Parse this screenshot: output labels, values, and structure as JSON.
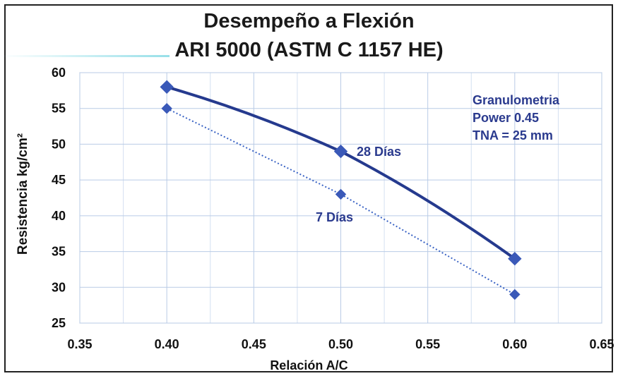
{
  "chart_data": {
    "type": "line",
    "title": "Desempeño a Flexión",
    "subtitle": "ARI 5000  (ASTM C 1157 HE)",
    "xlabel": "Relación A/C",
    "ylabel": "Resistencia  kg/cm²",
    "xlim": [
      0.35,
      0.65
    ],
    "ylim": [
      25,
      60
    ],
    "x_ticks": [
      "0.35",
      "0.40",
      "0.45",
      "0.50",
      "0.55",
      "0.60",
      "0.65"
    ],
    "y_ticks": [
      "60",
      "55",
      "50",
      "45",
      "40",
      "35",
      "30",
      "25"
    ],
    "grid": true,
    "x": [
      0.4,
      0.5,
      0.6
    ],
    "series": [
      {
        "name": "28 Días",
        "values": [
          58,
          49,
          34
        ],
        "color": "#253a8e",
        "style": "solid smooth"
      },
      {
        "name": "7 Días",
        "values": [
          55,
          43,
          29
        ],
        "color": "#3a63c4",
        "style": "dotted"
      }
    ],
    "annotation": [
      "Granulometria",
      "Power 0.45",
      "TNA = 25 mm"
    ]
  }
}
